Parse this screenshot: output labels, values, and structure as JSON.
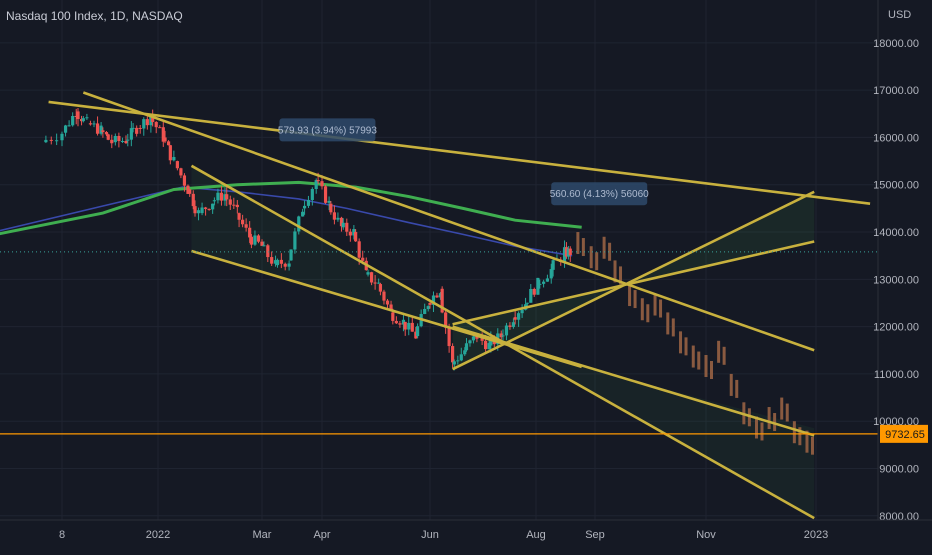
{
  "chart_data": {
    "type": "candlestick",
    "title": "Nasdaq 100 Index, 1D, NASDAQ",
    "currency": "USD",
    "x_tick_labels": [
      "8",
      "2022",
      "Mar",
      "Apr",
      "Jun",
      "Aug",
      "Sep",
      "Nov",
      "2023"
    ],
    "y_tick_labels": [
      "8000.00",
      "9000.00",
      "10000.00",
      "11000.00",
      "12000.00",
      "13000.00",
      "14000.00",
      "15000.00",
      "16000.00",
      "17000.00",
      "18000.00"
    ],
    "ylim": [
      7700,
      18800
    ],
    "price_line": {
      "value": 9732.65,
      "label": "9732.65",
      "color": "#ff9800"
    },
    "last_close_dotted": 13580,
    "measure_labels": [
      "579.93 (3.94%) 57993",
      "560.60 (4.13%) 56060"
    ],
    "colors": {
      "up": "#26a69a",
      "down": "#ef5350",
      "projection": "#8a5a40",
      "trend_lines": "#c8b13e",
      "ma_long": "#3fae50",
      "ma_short": "#3949ab",
      "measure_box": "#2e4a6b"
    },
    "candles": [
      {
        "date": "2021-11-01",
        "close": 15900
      },
      {
        "date": "2021-11-08",
        "close": 16100
      },
      {
        "date": "2021-11-16",
        "close": 16550
      },
      {
        "date": "2021-11-22",
        "close": 16300
      },
      {
        "date": "2021-11-30",
        "close": 16150
      },
      {
        "date": "2021-12-06",
        "close": 15900
      },
      {
        "date": "2021-12-14",
        "close": 15950
      },
      {
        "date": "2021-12-20",
        "close": 16200
      },
      {
        "date": "2021-12-28",
        "close": 16450
      },
      {
        "date": "2022-01-04",
        "close": 16000
      },
      {
        "date": "2022-01-10",
        "close": 15500
      },
      {
        "date": "2022-01-18",
        "close": 14900
      },
      {
        "date": "2022-01-24",
        "close": 14400
      },
      {
        "date": "2022-02-01",
        "close": 14650
      },
      {
        "date": "2022-02-08",
        "close": 14800
      },
      {
        "date": "2022-02-15",
        "close": 14400
      },
      {
        "date": "2022-02-22",
        "close": 13900
      },
      {
        "date": "2022-03-01",
        "close": 13700
      },
      {
        "date": "2022-03-08",
        "close": 13300
      },
      {
        "date": "2022-03-15",
        "close": 13400
      },
      {
        "date": "2022-03-22",
        "close": 14500
      },
      {
        "date": "2022-03-29",
        "close": 15100
      },
      {
        "date": "2022-04-05",
        "close": 14600
      },
      {
        "date": "2022-04-12",
        "close": 14100
      },
      {
        "date": "2022-04-19",
        "close": 14000
      },
      {
        "date": "2022-04-26",
        "close": 13100
      },
      {
        "date": "2022-05-03",
        "close": 12900
      },
      {
        "date": "2022-05-10",
        "close": 12300
      },
      {
        "date": "2022-05-17",
        "close": 12100
      },
      {
        "date": "2022-05-24",
        "close": 11800
      },
      {
        "date": "2022-05-31",
        "close": 12500
      },
      {
        "date": "2022-06-07",
        "close": 12800
      },
      {
        "date": "2022-06-14",
        "close": 11200
      },
      {
        "date": "2022-06-21",
        "close": 11500
      },
      {
        "date": "2022-06-28",
        "close": 11800
      },
      {
        "date": "2022-07-05",
        "close": 11600
      },
      {
        "date": "2022-07-12",
        "close": 11800
      },
      {
        "date": "2022-07-19",
        "close": 12200
      },
      {
        "date": "2022-07-26",
        "close": 12500
      },
      {
        "date": "2022-08-02",
        "close": 12900
      },
      {
        "date": "2022-08-09",
        "close": 13200
      },
      {
        "date": "2022-08-16",
        "close": 13550
      },
      {
        "date": "2022-08-19",
        "close": 13580
      }
    ],
    "projection_bars": [
      {
        "date": "2022-08-23",
        "close": 14000
      },
      {
        "date": "2022-08-30",
        "close": 13700
      },
      {
        "date": "2022-09-06",
        "close": 13900
      },
      {
        "date": "2022-09-12",
        "close": 13400
      },
      {
        "date": "2022-09-20",
        "close": 12900
      },
      {
        "date": "2022-09-27",
        "close": 12600
      },
      {
        "date": "2022-10-04",
        "close": 12700
      },
      {
        "date": "2022-10-11",
        "close": 12300
      },
      {
        "date": "2022-10-18",
        "close": 11900
      },
      {
        "date": "2022-10-25",
        "close": 11600
      },
      {
        "date": "2022-11-01",
        "close": 11400
      },
      {
        "date": "2022-11-08",
        "close": 11700
      },
      {
        "date": "2022-11-15",
        "close": 11000
      },
      {
        "date": "2022-11-22",
        "close": 10400
      },
      {
        "date": "2022-11-29",
        "close": 10100
      },
      {
        "date": "2022-12-06",
        "close": 10300
      },
      {
        "date": "2022-12-13",
        "close": 10500
      },
      {
        "date": "2022-12-20",
        "close": 10000
      },
      {
        "date": "2022-12-27",
        "close": 9800
      }
    ],
    "moving_average_long": [
      {
        "date": "2021-10-10",
        "value": 13900
      },
      {
        "date": "2021-12-01",
        "value": 14400
      },
      {
        "date": "2022-01-10",
        "value": 14900
      },
      {
        "date": "2022-02-15",
        "value": 15000
      },
      {
        "date": "2022-03-20",
        "value": 15050
      },
      {
        "date": "2022-04-20",
        "value": 14950
      },
      {
        "date": "2022-05-20",
        "value": 14750
      },
      {
        "date": "2022-06-20",
        "value": 14500
      },
      {
        "date": "2022-07-20",
        "value": 14250
      },
      {
        "date": "2022-08-25",
        "value": 14100
      }
    ],
    "moving_average_short": [
      {
        "date": "2021-10-10",
        "value": 13950
      },
      {
        "date": "2021-12-01",
        "value": 14550
      },
      {
        "date": "2022-01-15",
        "value": 14950
      },
      {
        "date": "2022-02-15",
        "value": 14850
      },
      {
        "date": "2022-03-20",
        "value": 14700
      },
      {
        "date": "2022-04-15",
        "value": 14500
      },
      {
        "date": "2022-05-20",
        "value": 14200
      },
      {
        "date": "2022-06-20",
        "value": 13950
      },
      {
        "date": "2022-07-20",
        "value": 13700
      },
      {
        "date": "2022-08-20",
        "value": 13500
      }
    ],
    "trend_lines": [
      {
        "from": {
          "date": "2021-11-03",
          "value": 16750
        },
        "to": {
          "date": "2023-01-30",
          "value": 14600
        }
      },
      {
        "from": {
          "date": "2021-11-20",
          "value": 16950
        },
        "to": {
          "date": "2022-12-31",
          "value": 11500
        }
      },
      {
        "from": {
          "date": "2022-01-20",
          "value": 15400
        },
        "to": {
          "date": "2022-12-31",
          "value": 7950
        }
      },
      {
        "from": {
          "date": "2022-01-20",
          "value": 13600
        },
        "to": {
          "date": "2022-08-25",
          "value": 11150
        }
      },
      {
        "from": {
          "date": "2022-06-14",
          "value": 12000
        },
        "to": {
          "date": "2022-12-31",
          "value": 9700
        }
      },
      {
        "from": {
          "date": "2022-06-14",
          "value": 11100
        },
        "to": {
          "date": "2022-12-31",
          "value": 14850
        }
      },
      {
        "from": {
          "date": "2022-06-14",
          "value": 12050
        },
        "to": {
          "date": "2022-12-31",
          "value": 13800
        }
      }
    ]
  }
}
